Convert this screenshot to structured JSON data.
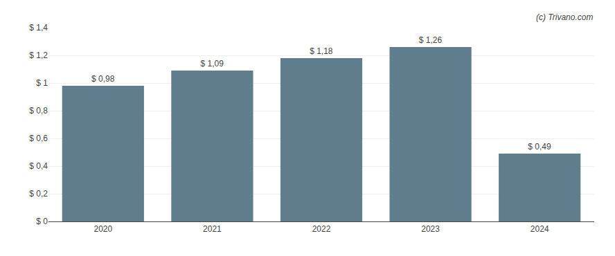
{
  "chart_data": {
    "type": "bar",
    "categories": [
      "2020",
      "2021",
      "2022",
      "2023",
      "2024"
    ],
    "values": [
      0.98,
      1.09,
      1.18,
      1.26,
      0.49
    ],
    "value_labels": [
      "$ 0,98",
      "$ 1,09",
      "$ 1,18",
      "$ 1,26",
      "$ 0,49"
    ],
    "data_labels": true,
    "color": "#5f7d8c",
    "ylim": [
      0,
      1.4
    ],
    "yticks": [
      {
        "value": 0,
        "label": "$ 0"
      },
      {
        "value": 0.2,
        "label": "$ 0,2"
      },
      {
        "value": 0.4,
        "label": "$ 0,4"
      },
      {
        "value": 0.6,
        "label": "$ 0,6"
      },
      {
        "value": 0.8,
        "label": "$ 0,8"
      },
      {
        "value": 1.0,
        "label": "$ 1"
      },
      {
        "value": 1.2,
        "label": "$ 1,2"
      },
      {
        "value": 1.4,
        "label": "$ 1,4"
      }
    ],
    "grid": true,
    "annotations": [
      "(c) Trivano.com"
    ]
  }
}
